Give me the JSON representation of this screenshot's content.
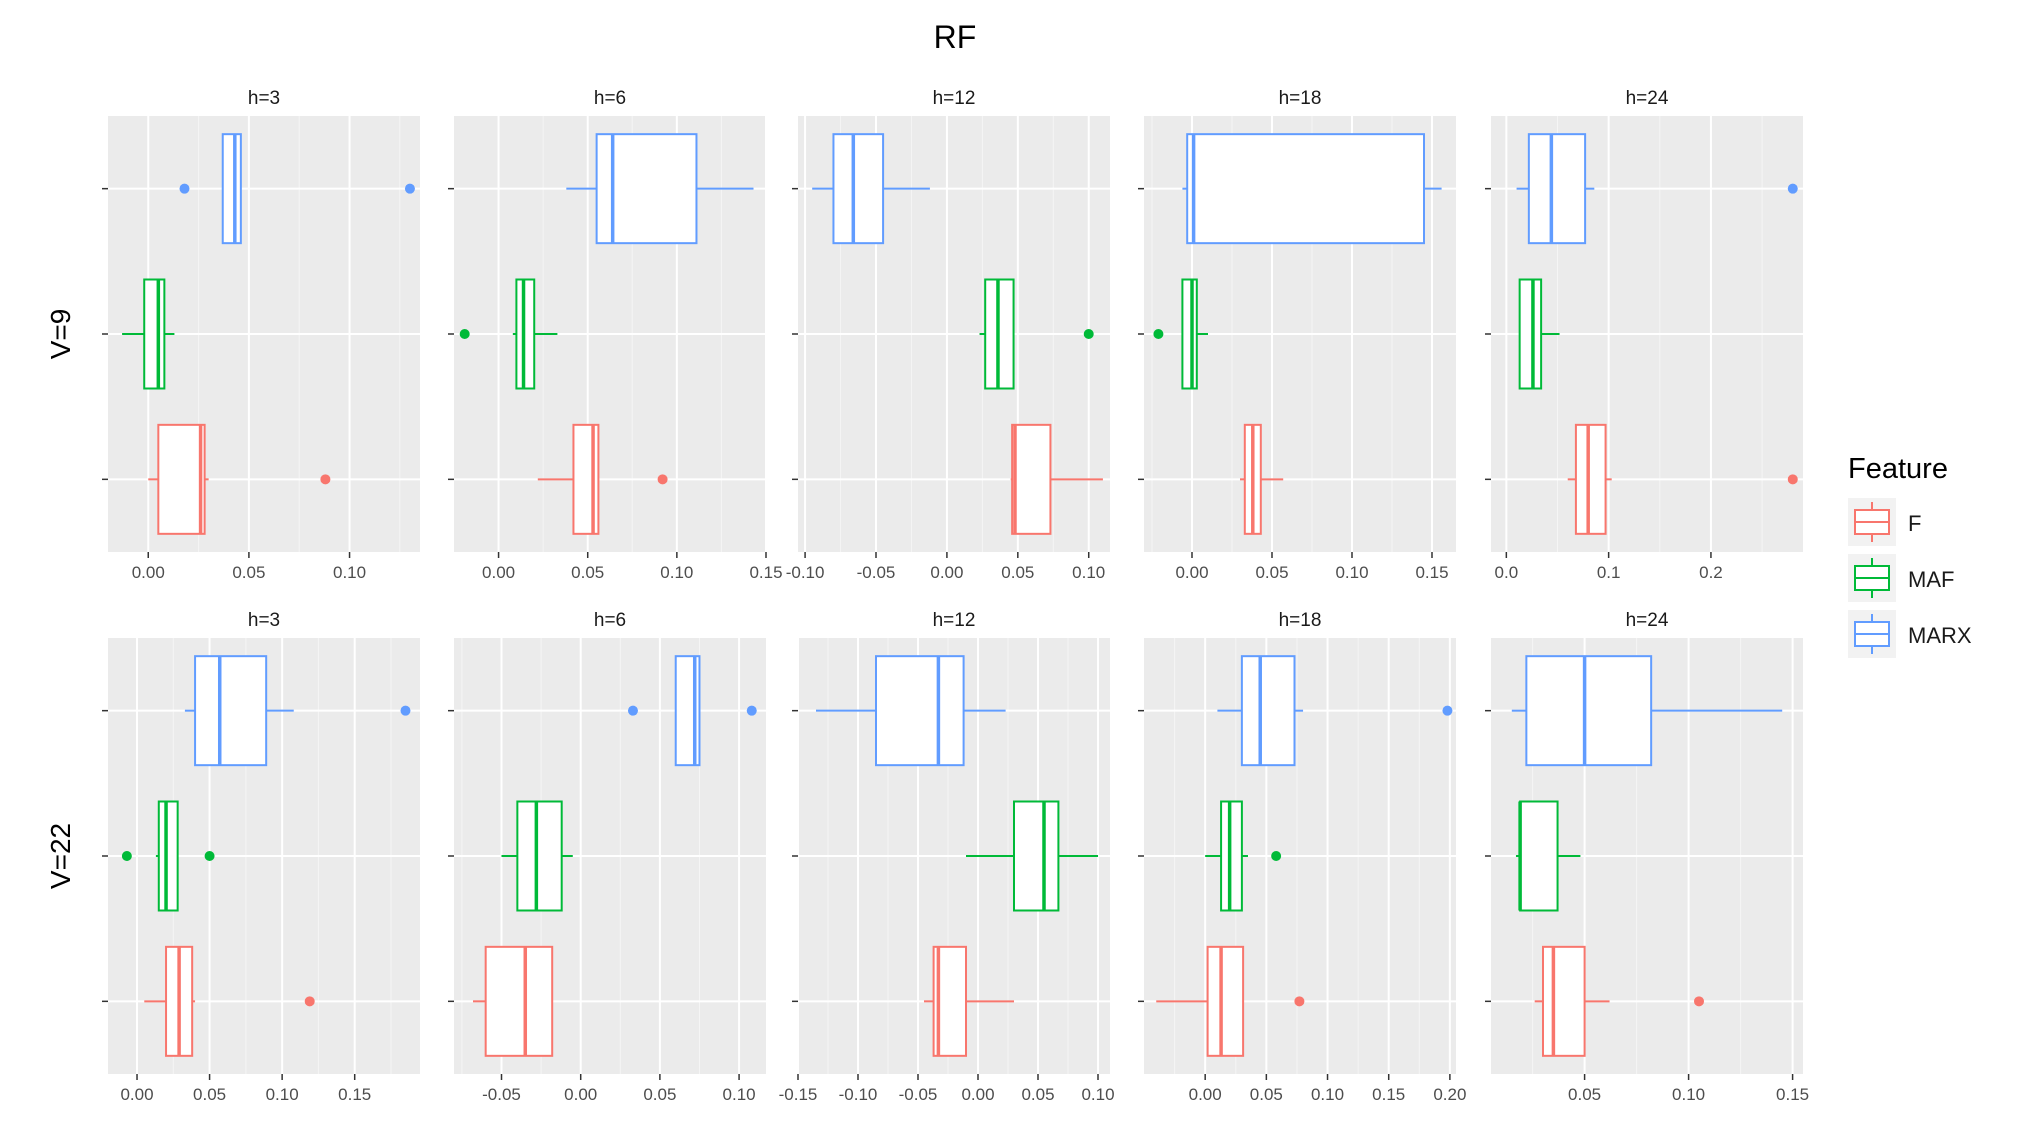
{
  "chart_data": {
    "type": "boxplot",
    "title": "RF",
    "xlabel": "",
    "ylabel": "",
    "grid": true,
    "legend": {
      "title": "Feature",
      "position": "right",
      "entries": [
        {
          "label": "F",
          "color": "#F8766D"
        },
        {
          "label": "MAF",
          "color": "#00BA38"
        },
        {
          "label": "MARX",
          "color": "#619CFF"
        }
      ]
    },
    "rows": [
      "V=9",
      "V=22"
    ],
    "columns": [
      "h=3",
      "h=6",
      "h=12",
      "h=18",
      "h=24"
    ],
    "panels": [
      {
        "row": "V=9",
        "col": "h=3",
        "xlim": [
          -0.02,
          0.135
        ],
        "ticks": [
          0.0,
          0.05,
          0.1
        ],
        "tick_labels": [
          "0.00",
          "0.05",
          "0.10"
        ],
        "boxes": [
          {
            "feature": "F",
            "whisker_low": 0.0,
            "q1": 0.005,
            "median": 0.026,
            "q3": 0.028,
            "whisker_high": 0.03,
            "outliers": [
              0.088
            ]
          },
          {
            "feature": "MAF",
            "whisker_low": -0.013,
            "q1": -0.002,
            "median": 0.005,
            "q3": 0.008,
            "whisker_high": 0.013,
            "outliers": []
          },
          {
            "feature": "MARX",
            "whisker_low": 0.037,
            "q1": 0.037,
            "median": 0.043,
            "q3": 0.046,
            "whisker_high": 0.046,
            "outliers": [
              0.018,
              0.13
            ]
          }
        ]
      },
      {
        "row": "V=9",
        "col": "h=6",
        "xlim": [
          -0.025,
          0.15
        ],
        "ticks": [
          0.0,
          0.05,
          0.1,
          0.15
        ],
        "tick_labels": [
          "0.00",
          "0.05",
          "0.10",
          "0.15"
        ],
        "boxes": [
          {
            "feature": "F",
            "whisker_low": 0.022,
            "q1": 0.042,
            "median": 0.053,
            "q3": 0.056,
            "whisker_high": 0.056,
            "outliers": [
              0.092
            ]
          },
          {
            "feature": "MAF",
            "whisker_low": 0.008,
            "q1": 0.01,
            "median": 0.014,
            "q3": 0.02,
            "whisker_high": 0.033,
            "outliers": [
              -0.019
            ]
          },
          {
            "feature": "MARX",
            "whisker_low": 0.038,
            "q1": 0.055,
            "median": 0.064,
            "q3": 0.111,
            "whisker_high": 0.143,
            "outliers": []
          }
        ]
      },
      {
        "row": "V=9",
        "col": "h=12",
        "xlim": [
          -0.105,
          0.115
        ],
        "ticks": [
          -0.1,
          -0.05,
          0.0,
          0.05,
          0.1
        ],
        "tick_labels": [
          "-0.10",
          "-0.05",
          "0.00",
          "0.05",
          "0.10"
        ],
        "boxes": [
          {
            "feature": "F",
            "whisker_low": 0.045,
            "q1": 0.046,
            "median": 0.048,
            "q3": 0.073,
            "whisker_high": 0.11,
            "outliers": []
          },
          {
            "feature": "MAF",
            "whisker_low": 0.023,
            "q1": 0.027,
            "median": 0.036,
            "q3": 0.047,
            "whisker_high": 0.047,
            "outliers": [
              0.1
            ]
          },
          {
            "feature": "MARX",
            "whisker_low": -0.095,
            "q1": -0.08,
            "median": -0.066,
            "q3": -0.045,
            "whisker_high": -0.012,
            "outliers": []
          }
        ]
      },
      {
        "row": "V=9",
        "col": "h=18",
        "xlim": [
          -0.03,
          0.165
        ],
        "ticks": [
          0.0,
          0.05,
          0.1,
          0.15
        ],
        "tick_labels": [
          "0.00",
          "0.05",
          "0.10",
          "0.15"
        ],
        "boxes": [
          {
            "feature": "F",
            "whisker_low": 0.03,
            "q1": 0.033,
            "median": 0.038,
            "q3": 0.043,
            "whisker_high": 0.057,
            "outliers": []
          },
          {
            "feature": "MAF",
            "whisker_low": -0.006,
            "q1": -0.006,
            "median": 0.0,
            "q3": 0.003,
            "whisker_high": 0.01,
            "outliers": [
              -0.021
            ]
          },
          {
            "feature": "MARX",
            "whisker_low": -0.006,
            "q1": -0.003,
            "median": 0.001,
            "q3": 0.145,
            "whisker_high": 0.156,
            "outliers": []
          }
        ]
      },
      {
        "row": "V=9",
        "col": "h=24",
        "xlim": [
          -0.015,
          0.29
        ],
        "ticks": [
          0.0,
          0.1,
          0.2
        ],
        "tick_labels": [
          "0.0",
          "0.1",
          "0.2"
        ],
        "boxes": [
          {
            "feature": "F",
            "whisker_low": 0.06,
            "q1": 0.068,
            "median": 0.08,
            "q3": 0.097,
            "whisker_high": 0.103,
            "outliers": [
              0.28
            ]
          },
          {
            "feature": "MAF",
            "whisker_low": 0.013,
            "q1": 0.013,
            "median": 0.026,
            "q3": 0.034,
            "whisker_high": 0.052,
            "outliers": []
          },
          {
            "feature": "MARX",
            "whisker_low": 0.01,
            "q1": 0.022,
            "median": 0.044,
            "q3": 0.077,
            "whisker_high": 0.086,
            "outliers": [
              0.28
            ]
          }
        ]
      },
      {
        "row": "V=22",
        "col": "h=3",
        "xlim": [
          -0.02,
          0.195
        ],
        "ticks": [
          0.0,
          0.05,
          0.1,
          0.15
        ],
        "tick_labels": [
          "0.00",
          "0.05",
          "0.10",
          "0.15"
        ],
        "boxes": [
          {
            "feature": "F",
            "whisker_low": 0.005,
            "q1": 0.02,
            "median": 0.029,
            "q3": 0.038,
            "whisker_high": 0.04,
            "outliers": [
              0.119
            ]
          },
          {
            "feature": "MAF",
            "whisker_low": 0.013,
            "q1": 0.015,
            "median": 0.02,
            "q3": 0.028,
            "whisker_high": 0.028,
            "outliers": [
              -0.007,
              0.05
            ]
          },
          {
            "feature": "MARX",
            "whisker_low": 0.033,
            "q1": 0.04,
            "median": 0.057,
            "q3": 0.089,
            "whisker_high": 0.108,
            "outliers": [
              0.185
            ]
          }
        ]
      },
      {
        "row": "V=22",
        "col": "h=6",
        "xlim": [
          -0.08,
          0.117
        ],
        "ticks": [
          -0.05,
          0.0,
          0.05,
          0.1
        ],
        "tick_labels": [
          "-0.05",
          "0.00",
          "0.05",
          "0.10"
        ],
        "boxes": [
          {
            "feature": "F",
            "whisker_low": -0.068,
            "q1": -0.06,
            "median": -0.035,
            "q3": -0.018,
            "whisker_high": -0.018,
            "outliers": []
          },
          {
            "feature": "MAF",
            "whisker_low": -0.05,
            "q1": -0.04,
            "median": -0.028,
            "q3": -0.012,
            "whisker_high": -0.005,
            "outliers": []
          },
          {
            "feature": "MARX",
            "whisker_low": 0.06,
            "q1": 0.06,
            "median": 0.072,
            "q3": 0.075,
            "whisker_high": 0.075,
            "outliers": [
              0.033,
              0.108
            ]
          }
        ]
      },
      {
        "row": "V=22",
        "col": "h=12",
        "xlim": [
          -0.15,
          0.11
        ],
        "ticks": [
          -0.15,
          -0.1,
          -0.05,
          0.0,
          0.05,
          0.1
        ],
        "tick_labels": [
          "-0.15",
          "-0.10",
          "-0.05",
          "0.00",
          "0.05",
          "0.10"
        ],
        "boxes": [
          {
            "feature": "F",
            "whisker_low": -0.045,
            "q1": -0.037,
            "median": -0.033,
            "q3": -0.01,
            "whisker_high": 0.03,
            "outliers": []
          },
          {
            "feature": "MAF",
            "whisker_low": -0.01,
            "q1": 0.03,
            "median": 0.055,
            "q3": 0.067,
            "whisker_high": 0.1,
            "outliers": []
          },
          {
            "feature": "MARX",
            "whisker_low": -0.135,
            "q1": -0.085,
            "median": -0.033,
            "q3": -0.012,
            "whisker_high": 0.023,
            "outliers": []
          }
        ]
      },
      {
        "row": "V=22",
        "col": "h=18",
        "xlim": [
          -0.05,
          0.205
        ],
        "ticks": [
          0.0,
          0.05,
          0.1,
          0.15,
          0.2
        ],
        "tick_labels": [
          "0.00",
          "0.05",
          "0.10",
          "0.15",
          "0.20"
        ],
        "boxes": [
          {
            "feature": "F",
            "whisker_low": -0.04,
            "q1": 0.002,
            "median": 0.013,
            "q3": 0.031,
            "whisker_high": 0.031,
            "outliers": [
              0.077
            ]
          },
          {
            "feature": "MAF",
            "whisker_low": 0.0,
            "q1": 0.013,
            "median": 0.02,
            "q3": 0.03,
            "whisker_high": 0.035,
            "outliers": [
              0.058
            ]
          },
          {
            "feature": "MARX",
            "whisker_low": 0.01,
            "q1": 0.03,
            "median": 0.045,
            "q3": 0.073,
            "whisker_high": 0.08,
            "outliers": [
              0.198
            ]
          }
        ]
      },
      {
        "row": "V=22",
        "col": "h=24",
        "xlim": [
          0.005,
          0.155
        ],
        "ticks": [
          0.05,
          0.1,
          0.15
        ],
        "tick_labels": [
          "0.05",
          "0.10",
          "0.15"
        ],
        "boxes": [
          {
            "feature": "F",
            "whisker_low": 0.026,
            "q1": 0.03,
            "median": 0.035,
            "q3": 0.05,
            "whisker_high": 0.062,
            "outliers": [
              0.105
            ]
          },
          {
            "feature": "MAF",
            "whisker_low": 0.017,
            "q1": 0.019,
            "median": 0.019,
            "q3": 0.037,
            "whisker_high": 0.048,
            "outliers": []
          },
          {
            "feature": "MARX",
            "whisker_low": 0.015,
            "q1": 0.022,
            "median": 0.05,
            "q3": 0.082,
            "whisker_high": 0.145,
            "outliers": []
          }
        ]
      }
    ]
  }
}
